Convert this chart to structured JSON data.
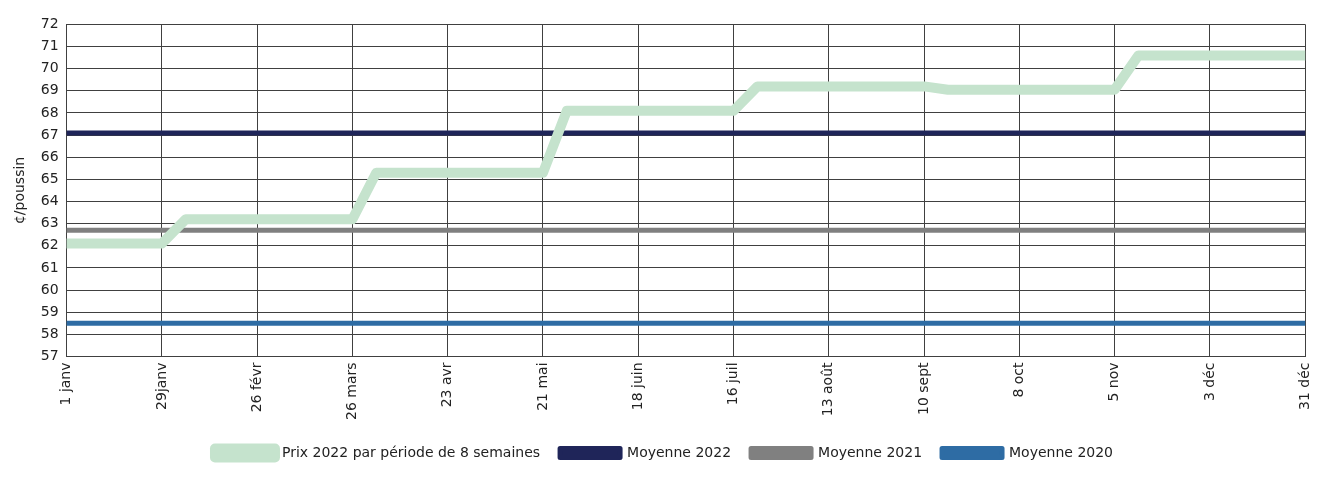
{
  "chart_data": {
    "type": "line",
    "ylabel": "¢/poussin",
    "categories": [
      "1 janv",
      null,
      null,
      null,
      "29janv",
      null,
      null,
      null,
      "26 févr",
      null,
      null,
      null,
      "26 mars",
      null,
      null,
      null,
      "23 avr",
      null,
      null,
      null,
      "21 mai",
      null,
      null,
      null,
      "18 juin",
      null,
      null,
      null,
      "16 juil",
      null,
      null,
      null,
      "13 août",
      null,
      null,
      null,
      "10 sept",
      null,
      null,
      null,
      "8 oct",
      null,
      null,
      null,
      "5 nov",
      null,
      null,
      null,
      "3 déc",
      null,
      null,
      null,
      "31 déc"
    ],
    "series": [
      {
        "name": "Prix 2022 par période de 8 semaines",
        "color": "#c5e3cd",
        "values": [
          62.1,
          62.1,
          62.1,
          62.1,
          62.1,
          63.2,
          63.2,
          63.2,
          63.2,
          63.2,
          63.2,
          63.2,
          63.2,
          65.3,
          65.3,
          65.3,
          65.3,
          65.3,
          65.3,
          65.3,
          65.3,
          68.1,
          68.1,
          68.1,
          68.1,
          68.1,
          68.1,
          68.1,
          68.1,
          69.2,
          69.2,
          69.2,
          69.2,
          69.2,
          69.2,
          69.2,
          69.2,
          69.05,
          69.05,
          69.05,
          69.05,
          69.05,
          69.05,
          69.05,
          69.05,
          70.6,
          70.6,
          70.6,
          70.6,
          70.6,
          70.6,
          70.6,
          70.6
        ]
      },
      {
        "name": "Moyenne 2022",
        "color": "#1f2559",
        "values": [
          67.1,
          67.1,
          67.1,
          67.1,
          67.1,
          67.1,
          67.1,
          67.1,
          67.1,
          67.1,
          67.1,
          67.1,
          67.1,
          67.1,
          67.1,
          67.1,
          67.1,
          67.1,
          67.1,
          67.1,
          67.1,
          67.1,
          67.1,
          67.1,
          67.1,
          67.1,
          67.1,
          67.1,
          67.1,
          67.1,
          67.1,
          67.1,
          67.1,
          67.1,
          67.1,
          67.1,
          67.1,
          67.1,
          67.1,
          67.1,
          67.1,
          67.1,
          67.1,
          67.1,
          67.1,
          67.1,
          67.1,
          67.1,
          67.1,
          67.1,
          67.1,
          67.1,
          67.1
        ]
      },
      {
        "name": "Moyenne 2021",
        "color": "#808080",
        "values": [
          62.7,
          62.7,
          62.7,
          62.7,
          62.7,
          62.7,
          62.7,
          62.7,
          62.7,
          62.7,
          62.7,
          62.7,
          62.7,
          62.7,
          62.7,
          62.7,
          62.7,
          62.7,
          62.7,
          62.7,
          62.7,
          62.7,
          62.7,
          62.7,
          62.7,
          62.7,
          62.7,
          62.7,
          62.7,
          62.7,
          62.7,
          62.7,
          62.7,
          62.7,
          62.7,
          62.7,
          62.7,
          62.7,
          62.7,
          62.7,
          62.7,
          62.7,
          62.7,
          62.7,
          62.7,
          62.7,
          62.7,
          62.7,
          62.7,
          62.7,
          62.7,
          62.7,
          62.7
        ]
      },
      {
        "name": "Moyenne 2020",
        "color": "#2e6ca4",
        "values": [
          58.5,
          58.5,
          58.5,
          58.5,
          58.5,
          58.5,
          58.5,
          58.5,
          58.5,
          58.5,
          58.5,
          58.5,
          58.5,
          58.5,
          58.5,
          58.5,
          58.5,
          58.5,
          58.5,
          58.5,
          58.5,
          58.5,
          58.5,
          58.5,
          58.5,
          58.5,
          58.5,
          58.5,
          58.5,
          58.5,
          58.5,
          58.5,
          58.5,
          58.5,
          58.5,
          58.5,
          58.5,
          58.5,
          58.5,
          58.5,
          58.5,
          58.5,
          58.5,
          58.5,
          58.5,
          58.5,
          58.5,
          58.5,
          58.5,
          58.5,
          58.5,
          58.5,
          58.5
        ]
      }
    ],
    "ylim": [
      57,
      72
    ],
    "yticks": [
      57,
      58,
      59,
      60,
      61,
      62,
      63,
      64,
      65,
      66,
      67,
      68,
      69,
      70,
      71,
      72
    ],
    "grid": true,
    "legend": "bottom",
    "marker": "none",
    "line_style": "solid"
  }
}
